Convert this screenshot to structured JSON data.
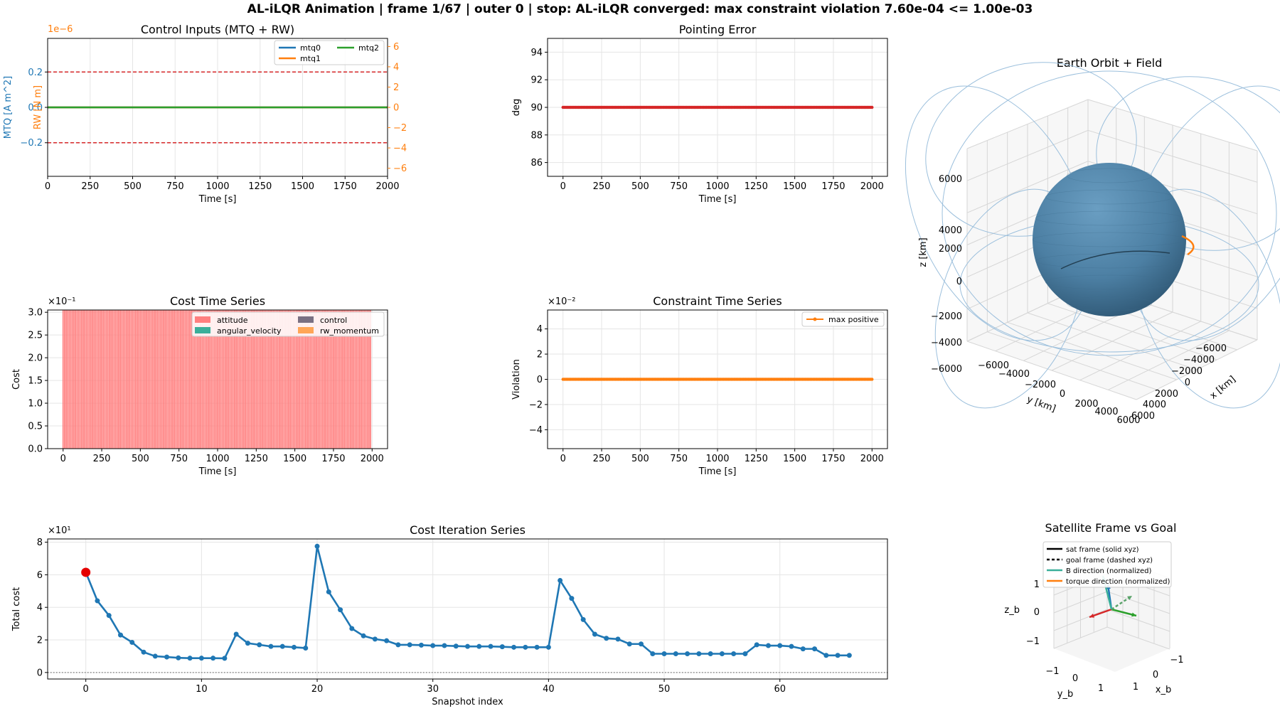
{
  "suptitle": "AL-iLQR Animation | frame 1/67 | outer 0 | stop: AL-iLQR converged: max constraint violation 7.60e-04 <= 1.00e-03",
  "colors": {
    "c0": "#1f77b4",
    "c1": "#ff7f0e",
    "c2": "#2ca02c",
    "red": "#d62728",
    "attitude": "#ff7f7f",
    "angular_velocity": "#3aaf9a",
    "control": "#7a7082",
    "rw_momentum": "#ffa657",
    "sphere": "#4c7fa3",
    "fieldline": "#9bbfdc",
    "marker": "#e50000",
    "grid": "#e5e5e5"
  },
  "chart_data": [
    {
      "id": "control",
      "type": "line",
      "title": "Control Inputs (MTQ + RW)",
      "xlabel": "Time [s]",
      "ylabel": "MTQ [A m^2]",
      "ylabel_right": "RW [N m]",
      "right_offset_text": "1e−6",
      "xlim": [
        0,
        2000
      ],
      "ylim": [
        -0.39,
        0.39
      ],
      "ylim_right": [
        -6.8,
        6.8
      ],
      "xticks": [
        0,
        250,
        500,
        750,
        1000,
        1250,
        1500,
        1750,
        2000
      ],
      "xtick_labels": [
        "0",
        "250",
        "500",
        "750",
        "1000",
        "1250",
        "1500",
        "1750",
        "2000"
      ],
      "yticks": [
        -0.2,
        0.0,
        0.2
      ],
      "ytick_labels": [
        "−0.2",
        "0.0",
        "0.2"
      ],
      "yticks_right": [
        -6,
        -4,
        -2,
        0,
        2,
        4,
        6
      ],
      "ytick_labels_right": [
        "−6",
        "−4",
        "−2",
        "0",
        "2",
        "4",
        "6"
      ],
      "limit_lines": [
        0.2,
        -0.2
      ],
      "series": [
        {
          "name": "mtq0",
          "x": [
            0,
            2000
          ],
          "y": [
            0,
            0
          ]
        },
        {
          "name": "mtq1",
          "x": [
            0,
            2000
          ],
          "y": [
            0,
            0
          ]
        },
        {
          "name": "mtq2",
          "x": [
            0,
            2000
          ],
          "y": [
            0,
            0
          ]
        }
      ],
      "legend": [
        "mtq0",
        "mtq1",
        "mtq2"
      ],
      "legend_loc": "upper right"
    },
    {
      "id": "pointing",
      "type": "line",
      "title": "Pointing Error",
      "xlabel": "Time [s]",
      "ylabel": "deg",
      "xlim": [
        -100,
        2100
      ],
      "ylim": [
        85.0,
        95.0
      ],
      "xticks": [
        0,
        250,
        500,
        750,
        1000,
        1250,
        1500,
        1750,
        2000
      ],
      "xtick_labels": [
        "0",
        "250",
        "500",
        "750",
        "1000",
        "1250",
        "1500",
        "1750",
        "2000"
      ],
      "yticks": [
        86,
        88,
        90,
        92,
        94
      ],
      "ytick_labels": [
        "86",
        "88",
        "90",
        "92",
        "94"
      ],
      "series": [
        {
          "x_start": 0,
          "x_end": 2000,
          "x_step": 10,
          "y": 90
        }
      ]
    },
    {
      "id": "cost_ts",
      "type": "bar",
      "title": "Cost Time Series",
      "xlabel": "Time [s]",
      "ylabel": "Cost",
      "offset_text": "×10⁻¹",
      "xlim": [
        -100,
        2100
      ],
      "ylim": [
        0.0,
        3.05
      ],
      "xticks": [
        0,
        250,
        500,
        750,
        1000,
        1250,
        1500,
        1750,
        2000
      ],
      "xtick_labels": [
        "0",
        "250",
        "500",
        "750",
        "1000",
        "1250",
        "1500",
        "1750",
        "2000"
      ],
      "yticks": [
        0.0,
        0.5,
        1.0,
        1.5,
        2.0,
        2.5,
        3.0
      ],
      "ytick_labels": [
        "0.0",
        "0.5",
        "1.0",
        "1.5",
        "2.0",
        "2.5",
        "3.0"
      ],
      "bars": {
        "x_start": 0,
        "x_end": 1990,
        "x_step": 10,
        "value": 3.05,
        "series": "attitude"
      },
      "legend": [
        "attitude",
        "angular_velocity",
        "control",
        "rw_momentum"
      ],
      "legend_loc": "upper right"
    },
    {
      "id": "constraint_ts",
      "type": "line",
      "title": "Constraint Time Series",
      "xlabel": "Time [s]",
      "ylabel": "Violation",
      "offset_text": "×10⁻²",
      "xlim": [
        -100,
        2100
      ],
      "ylim": [
        -5.5,
        5.5
      ],
      "xticks": [
        0,
        250,
        500,
        750,
        1000,
        1250,
        1500,
        1750,
        2000
      ],
      "xtick_labels": [
        "0",
        "250",
        "500",
        "750",
        "1000",
        "1250",
        "1500",
        "1750",
        "2000"
      ],
      "yticks": [
        -4,
        -2,
        0,
        2,
        4
      ],
      "ytick_labels": [
        "−4",
        "−2",
        "0",
        "2",
        "4"
      ],
      "series": [
        {
          "name": "max positive",
          "x_start": 0,
          "x_end": 2000,
          "x_step": 10,
          "y": 0
        }
      ],
      "legend": [
        "max positive"
      ],
      "legend_loc": "upper right"
    },
    {
      "id": "cost_iter",
      "type": "line",
      "title": "Cost Iteration Series",
      "xlabel": "Snapshot index",
      "ylabel": "Total cost",
      "offset_text": "×10¹",
      "xlim": [
        -3.3,
        69.3
      ],
      "ylim": [
        -0.4,
        8.2
      ],
      "xticks": [
        0,
        10,
        20,
        30,
        40,
        50,
        60
      ],
      "xtick_labels": [
        "0",
        "10",
        "20",
        "30",
        "40",
        "50",
        "60"
      ],
      "yticks": [
        0,
        2,
        4,
        6,
        8
      ],
      "ytick_labels": [
        "0",
        "2",
        "4",
        "6",
        "8"
      ],
      "series": [
        {
          "values": [
            6.15,
            4.4,
            3.5,
            2.3,
            1.85,
            1.25,
            1.0,
            0.95,
            0.9,
            0.88,
            0.88,
            0.88,
            0.87,
            2.35,
            1.8,
            1.7,
            1.6,
            1.6,
            1.55,
            1.5,
            7.75,
            4.95,
            3.85,
            2.7,
            2.25,
            2.05,
            1.95,
            1.7,
            1.7,
            1.68,
            1.65,
            1.65,
            1.62,
            1.6,
            1.6,
            1.6,
            1.58,
            1.55,
            1.55,
            1.55,
            1.55,
            5.65,
            4.55,
            3.25,
            2.35,
            2.1,
            2.05,
            1.75,
            1.75,
            1.15,
            1.15,
            1.15,
            1.15,
            1.15,
            1.15,
            1.15,
            1.15,
            1.15,
            1.7,
            1.65,
            1.65,
            1.6,
            1.45,
            1.45,
            1.05,
            1.05,
            1.05
          ]
        }
      ],
      "highlight_index": 0
    },
    {
      "id": "orbit3d",
      "type": "scatter",
      "title": "Earth Orbit + Field",
      "xlabel": "x [km]",
      "ylabel": "y [km]",
      "zlabel": "z [km]",
      "xticks": [
        "−6000",
        "−4000",
        "−2000",
        "0",
        "2000",
        "4000",
        "6000"
      ],
      "yticks": [
        "−6000",
        "−4000",
        "−2000",
        "0",
        "2000",
        "4000",
        "6000"
      ],
      "zticks": [
        "6000",
        "4000",
        "2000",
        "0",
        "−2000",
        "−4000",
        "−6000"
      ]
    },
    {
      "id": "satframe",
      "type": "scatter",
      "title": "Satellite Frame vs Goal",
      "xlabel": "x_b",
      "ylabel": "y_b",
      "zlabel": "z_b",
      "xticks": [
        "−1",
        "0",
        "1"
      ],
      "yticks": [
        "−1",
        "0",
        "1"
      ],
      "zticks": [
        "1",
        "0",
        "−1"
      ],
      "legend": [
        "sat frame (solid xyz)",
        "goal frame (dashed xyz)",
        "B direction (normalized)",
        "torque direction (normalized)"
      ]
    }
  ]
}
